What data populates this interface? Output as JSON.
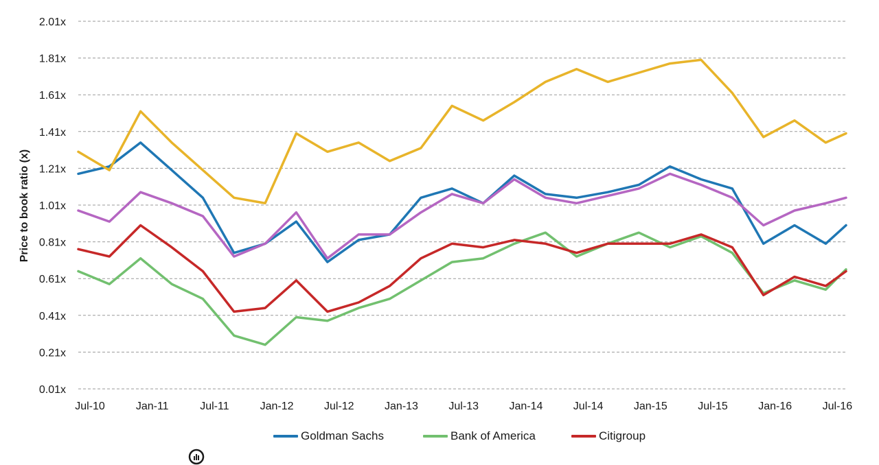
{
  "chart_data": {
    "type": "line",
    "title": "",
    "xlabel": "",
    "ylabel": "Price to book ratio (x)",
    "ylim": [
      0.01,
      2.01
    ],
    "yticks": [
      "0.01x",
      "0.21x",
      "0.41x",
      "0.61x",
      "0.81x",
      "1.01x",
      "1.21x",
      "1.41x",
      "1.61x",
      "1.81x",
      "2.01x"
    ],
    "ytick_values": [
      0.01,
      0.21,
      0.41,
      0.61,
      0.81,
      1.01,
      1.21,
      1.41,
      1.61,
      1.81,
      2.01
    ],
    "xticks": [
      "Jul-10",
      "Jan-11",
      "Jul-11",
      "Jan-12",
      "Jul-12",
      "Jan-13",
      "Jul-13",
      "Jan-14",
      "Jul-14",
      "Jan-15",
      "Jul-15",
      "Jan-16",
      "Jul-16"
    ],
    "grid": "horizontal dashed",
    "legend_position": "bottom",
    "x": [
      "Jul-10",
      "Oct-10",
      "Jan-11",
      "Apr-11",
      "Jul-11",
      "Oct-11",
      "Jan-12",
      "Apr-12",
      "Jul-12",
      "Oct-12",
      "Jan-13",
      "Apr-13",
      "Jul-13",
      "Oct-13",
      "Jan-14",
      "Apr-14",
      "Jul-14",
      "Oct-14",
      "Jan-15",
      "Apr-15",
      "Jul-15",
      "Oct-15",
      "Jan-16",
      "Apr-16",
      "Jul-16",
      "Aug-16"
    ],
    "series": [
      {
        "name": "Goldman Sachs",
        "color": "#1f77b4",
        "values": [
          1.18,
          1.22,
          1.35,
          1.2,
          1.05,
          0.75,
          0.8,
          0.92,
          0.7,
          0.82,
          0.85,
          1.05,
          1.1,
          1.02,
          1.17,
          1.07,
          1.05,
          1.08,
          1.12,
          1.22,
          1.15,
          1.1,
          0.8,
          0.9,
          0.8,
          0.9
        ]
      },
      {
        "name": "",
        "color": "#e8b42a",
        "values": [
          1.3,
          1.2,
          1.52,
          1.35,
          1.2,
          1.05,
          1.02,
          1.4,
          1.3,
          1.35,
          1.25,
          1.32,
          1.55,
          1.47,
          1.57,
          1.68,
          1.75,
          1.68,
          1.73,
          1.78,
          1.8,
          1.62,
          1.38,
          1.47,
          1.35,
          1.4
        ]
      },
      {
        "name": "",
        "color": "#b566c2",
        "values": [
          0.98,
          0.92,
          1.08,
          1.02,
          0.95,
          0.73,
          0.8,
          0.97,
          0.72,
          0.85,
          0.85,
          0.97,
          1.07,
          1.02,
          1.15,
          1.05,
          1.02,
          1.06,
          1.1,
          1.18,
          1.12,
          1.05,
          0.9,
          0.98,
          1.02,
          1.05
        ]
      },
      {
        "name": "Bank of America",
        "color": "#72c06f",
        "values": [
          0.65,
          0.58,
          0.72,
          0.58,
          0.5,
          0.3,
          0.25,
          0.4,
          0.38,
          0.45,
          0.5,
          0.6,
          0.7,
          0.72,
          0.8,
          0.86,
          0.73,
          0.8,
          0.86,
          0.78,
          0.84,
          0.75,
          0.53,
          0.6,
          0.55,
          0.66
        ]
      },
      {
        "name": "Citigroup",
        "color": "#c62828",
        "values": [
          0.77,
          0.73,
          0.9,
          0.78,
          0.65,
          0.43,
          0.45,
          0.6,
          0.43,
          0.48,
          0.57,
          0.72,
          0.8,
          0.78,
          0.82,
          0.8,
          0.75,
          0.8,
          0.8,
          0.8,
          0.85,
          0.78,
          0.52,
          0.62,
          0.57,
          0.65
        ]
      }
    ]
  }
}
